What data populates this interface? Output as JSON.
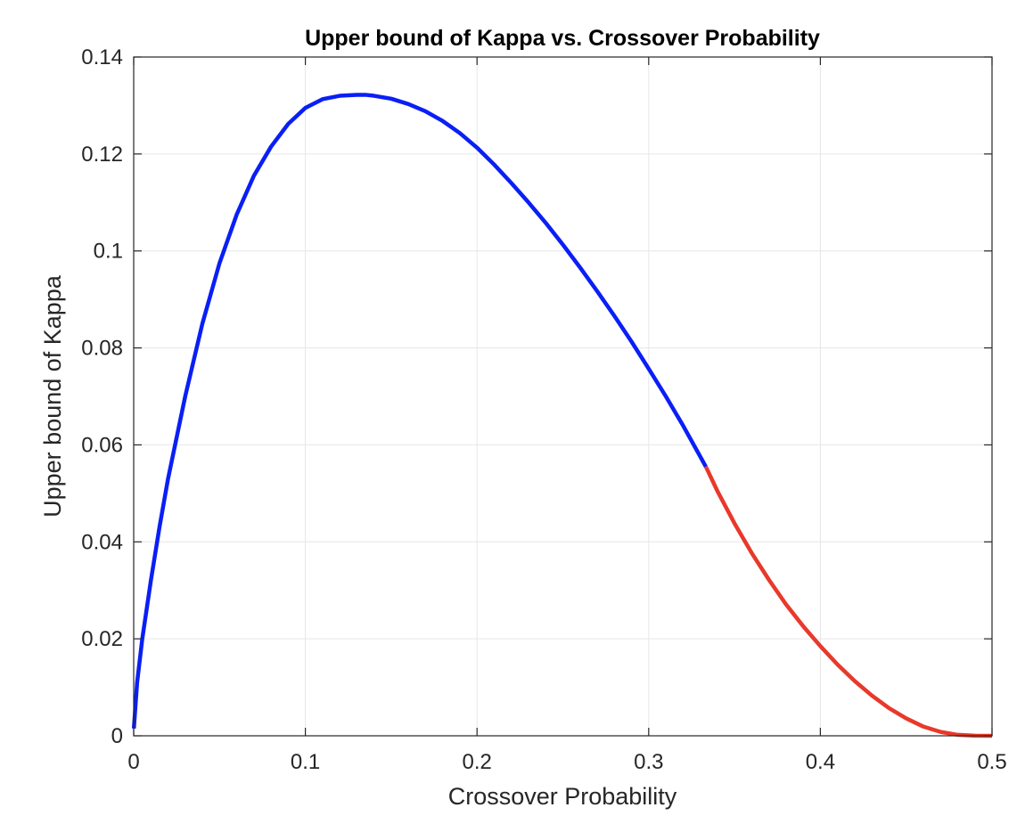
{
  "chart_data": {
    "type": "line",
    "title": "Upper bound of Kappa vs. Crossover Probability",
    "xlabel": "Crossover Probability",
    "ylabel": "Upper bound of Kappa",
    "xlim": [
      0,
      0.5
    ],
    "ylim": [
      0,
      0.14
    ],
    "xticks": [
      0,
      0.1,
      0.2,
      0.3,
      0.4,
      0.5
    ],
    "xtick_labels": [
      "0",
      "0.1",
      "0.2",
      "0.3",
      "0.4",
      "0.5"
    ],
    "yticks": [
      0,
      0.02,
      0.04,
      0.06,
      0.08,
      0.1,
      0.12,
      0.14
    ],
    "ytick_labels": [
      "0",
      "0.02",
      "0.04",
      "0.06",
      "0.08",
      "0.1",
      "0.12",
      "0.14"
    ],
    "grid": true,
    "legend": "none",
    "series": [
      {
        "color": "#0a1ff5",
        "x": [
          0.0001,
          0.002,
          0.005,
          0.01,
          0.015,
          0.02,
          0.03,
          0.04,
          0.05,
          0.06,
          0.07,
          0.08,
          0.09,
          0.1,
          0.11,
          0.12,
          0.13,
          0.135,
          0.14,
          0.15,
          0.16,
          0.17,
          0.18,
          0.19,
          0.2,
          0.21,
          0.22,
          0.23,
          0.24,
          0.25,
          0.26,
          0.27,
          0.28,
          0.29,
          0.3,
          0.31,
          0.32,
          0.3333
        ],
        "y": [
          0.0015,
          0.011,
          0.02,
          0.032,
          0.043,
          0.053,
          0.07,
          0.085,
          0.0975,
          0.1075,
          0.1155,
          0.1215,
          0.1262,
          0.1295,
          0.1313,
          0.132,
          0.1322,
          0.1322,
          0.132,
          0.1314,
          0.1303,
          0.1288,
          0.1268,
          0.1243,
          0.1213,
          0.1178,
          0.114,
          0.11,
          0.1058,
          0.1013,
          0.0966,
          0.0917,
          0.0866,
          0.0813,
          0.0757,
          0.07,
          0.064,
          0.0555
        ]
      },
      {
        "color": "#e8392b",
        "x": [
          0.3333,
          0.34,
          0.35,
          0.36,
          0.37,
          0.38,
          0.39,
          0.4,
          0.41,
          0.42,
          0.43,
          0.44,
          0.45,
          0.46,
          0.47,
          0.48,
          0.49,
          0.5
        ],
        "y": [
          0.0555,
          0.0505,
          0.0438,
          0.0377,
          0.0322,
          0.0271,
          0.0226,
          0.0185,
          0.0147,
          0.0113,
          0.0083,
          0.0057,
          0.0036,
          0.0019,
          0.0008,
          0.0002,
          2e-05,
          0.0
        ]
      }
    ]
  }
}
